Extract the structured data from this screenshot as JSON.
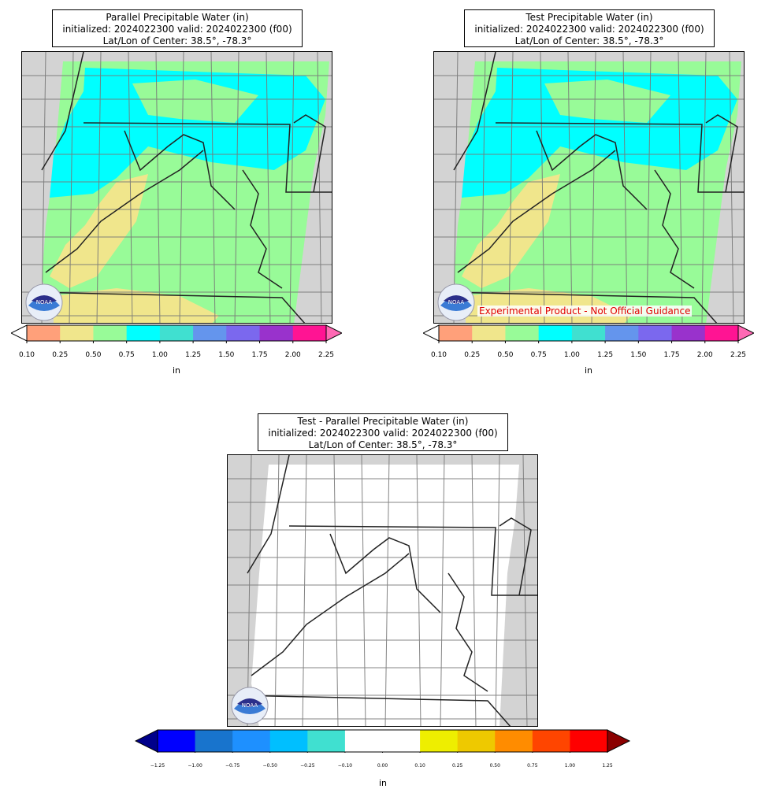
{
  "panels": [
    {
      "id": "parallel",
      "title_lines": [
        "Parallel Precipitable Water (in)",
        "initialized: 2024022300 valid: 2024022300 (f00)",
        "Lat/Lon of Center: 38.5°, -78.3°"
      ],
      "colorbar": {
        "colors": [
          "#ffa07a",
          "#f0e68c",
          "#98fb98",
          "#00ffff",
          "#40e0d0",
          "#6495ed",
          "#7b68ee",
          "#9932cc",
          "#ff1493"
        ],
        "under_color": "#ffffff",
        "over_color": "#ff69b4",
        "ticks": [
          "0.10",
          "0.25",
          "0.50",
          "0.75",
          "1.00",
          "1.25",
          "1.50",
          "1.75",
          "2.00",
          "2.25"
        ],
        "unit": "in"
      }
    },
    {
      "id": "test",
      "title_lines": [
        "Test Precipitable Water (in)",
        "initialized: 2024022300 valid: 2024022300 (f00)",
        "Lat/Lon of Center: 38.5°, -78.3°"
      ],
      "experimental_label": "Experimental Product - Not Official Guidance",
      "colorbar": {
        "colors": [
          "#ffa07a",
          "#f0e68c",
          "#98fb98",
          "#00ffff",
          "#40e0d0",
          "#6495ed",
          "#7b68ee",
          "#9932cc",
          "#ff1493"
        ],
        "under_color": "#ffffff",
        "over_color": "#ff69b4",
        "ticks": [
          "0.10",
          "0.25",
          "0.50",
          "0.75",
          "1.00",
          "1.25",
          "1.50",
          "1.75",
          "2.00",
          "2.25"
        ],
        "unit": "in"
      }
    },
    {
      "id": "difference",
      "title_lines": [
        "Test - Parallel Precipitable Water (in)",
        "initialized: 2024022300 valid: 2024022300 (f00)",
        "Lat/Lon of Center: 38.5°, -78.3°"
      ],
      "colorbar": {
        "colors": [
          "#0000ff",
          "#1874cd",
          "#1e90ff",
          "#00bfff",
          "#40e0d0",
          "#ffffff",
          "#ffffff",
          "#eeee00",
          "#eec900",
          "#ff8c00",
          "#ff4500",
          "#ff0000"
        ],
        "under_color": "#00008b",
        "over_color": "#8b0000",
        "ticks": [
          "−1.25",
          "−1.00",
          "−0.75",
          "−0.50",
          "−0.25",
          "−0.10",
          "0.00",
          "0.10",
          "0.25",
          "0.50",
          "0.75",
          "1.00",
          "1.25"
        ],
        "unit": "in"
      }
    }
  ],
  "colors": {
    "out_of_domain": "#d3d3d3",
    "county_lines": "#777777",
    "state_lines": "#222222",
    "pw_green": "#98fb98",
    "pw_cyan": "#00ffff",
    "pw_yellow": "#f0e68c"
  },
  "logo": "noaa-logo"
}
